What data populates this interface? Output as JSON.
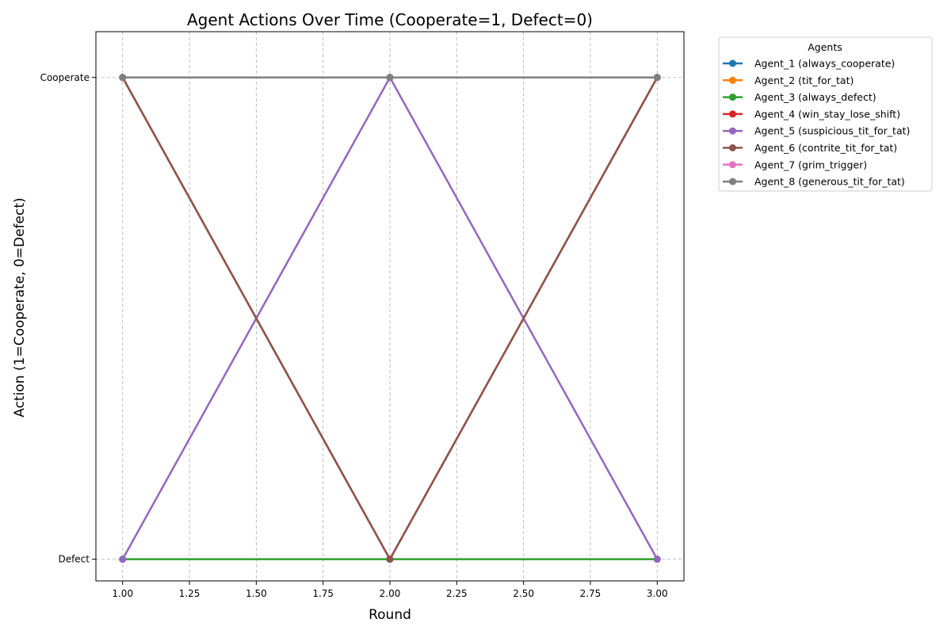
{
  "chart_data": {
    "type": "line",
    "title": "Agent Actions Over Time (Cooperate=1, Defect=0)",
    "xlabel": "Round",
    "ylabel": "Action (1=Cooperate, 0=Defect)",
    "xlim": [
      0.9,
      3.1
    ],
    "ylim": [
      -0.045,
      1.095
    ],
    "x": [
      1,
      2,
      3
    ],
    "xticks": [
      1.0,
      1.25,
      1.5,
      1.75,
      2.0,
      2.25,
      2.5,
      2.75,
      3.0
    ],
    "xtick_labels": [
      "1.00",
      "1.25",
      "1.50",
      "1.75",
      "2.00",
      "2.25",
      "2.50",
      "2.75",
      "3.00"
    ],
    "yticks": [
      0,
      1
    ],
    "ytick_labels": [
      "Defect",
      "Cooperate"
    ],
    "grid": true,
    "legend_title": "Agents",
    "legend_position": "outside-top-right",
    "series": [
      {
        "name": "Agent_1 (always_cooperate)",
        "color": "#1f77b4",
        "values": [
          1,
          1,
          1
        ]
      },
      {
        "name": "Agent_2 (tit_for_tat)",
        "color": "#ff7f0e",
        "values": [
          1,
          1,
          1
        ]
      },
      {
        "name": "Agent_3 (always_defect)",
        "color": "#2ca02c",
        "values": [
          0,
          0,
          0
        ]
      },
      {
        "name": "Agent_4 (win_stay_lose_shift)",
        "color": "#d62728",
        "values": [
          1,
          0,
          1
        ]
      },
      {
        "name": "Agent_5 (suspicious_tit_for_tat)",
        "color": "#9467bd",
        "values": [
          0,
          1,
          0
        ]
      },
      {
        "name": "Agent_6 (contrite_tit_for_tat)",
        "color": "#8c564b",
        "values": [
          1,
          0,
          1
        ]
      },
      {
        "name": "Agent_7 (grim_trigger)",
        "color": "#e377c2",
        "values": [
          1,
          1,
          1
        ]
      },
      {
        "name": "Agent_8 (generous_tit_for_tat)",
        "color": "#7f7f7f",
        "values": [
          1,
          1,
          1
        ]
      }
    ]
  }
}
